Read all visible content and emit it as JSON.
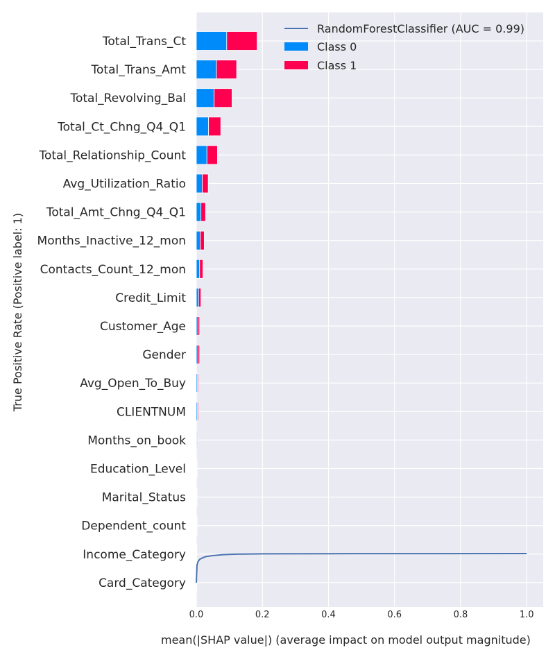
{
  "chart_data": {
    "type": "bar",
    "orientation": "horizontal",
    "stacked": true,
    "xlabel": "mean(|SHAP value|) (average impact on model output magnitude)",
    "ylabel": "True Positive Rate (Positive label: 1)",
    "xlim": [
      0,
      1.05
    ],
    "xticks": [
      "0.0",
      "0.2",
      "0.4",
      "0.6",
      "0.8",
      "1.0"
    ],
    "grid": true,
    "legend_position": "top-right",
    "categories": [
      "Total_Trans_Ct",
      "Total_Trans_Amt",
      "Total_Revolving_Bal",
      "Total_Ct_Chng_Q4_Q1",
      "Total_Relationship_Count",
      "Avg_Utilization_Ratio",
      "Total_Amt_Chng_Q4_Q1",
      "Months_Inactive_12_mon",
      "Contacts_Count_12_mon",
      "Credit_Limit",
      "Customer_Age",
      "Gender",
      "Avg_Open_To_Buy",
      "CLIENTNUM",
      "Months_on_book",
      "Education_Level",
      "Marital_Status",
      "Dependent_count",
      "Income_Category",
      "Card_Category"
    ],
    "series": [
      {
        "name": "Class 0",
        "color": "#008bfb",
        "values": [
          0.092,
          0.061,
          0.054,
          0.037,
          0.032,
          0.018,
          0.014,
          0.012,
          0.01,
          0.007,
          0.005,
          0.005,
          0.003,
          0.003,
          0.002,
          0.001,
          0.001,
          0.001,
          0.0005,
          0.0003
        ]
      },
      {
        "name": "Class 1",
        "color": "#ff0051",
        "values": [
          0.092,
          0.061,
          0.054,
          0.037,
          0.032,
          0.018,
          0.014,
          0.012,
          0.01,
          0.007,
          0.005,
          0.005,
          0.003,
          0.003,
          0.002,
          0.001,
          0.001,
          0.001,
          0.0005,
          0.0003
        ]
      }
    ],
    "roc_curve": {
      "name": "RandomForestClassifier (AUC = 0.99)",
      "color": "#4c72b0",
      "x": [
        0,
        0.002,
        0.005,
        0.01,
        0.02,
        0.03,
        0.05,
        0.08,
        0.12,
        0.2,
        0.4,
        0.7,
        1.0
      ],
      "y": [
        0,
        0.6,
        0.72,
        0.8,
        0.86,
        0.9,
        0.93,
        0.96,
        0.98,
        0.99,
        0.995,
        0.998,
        1.0
      ]
    }
  }
}
